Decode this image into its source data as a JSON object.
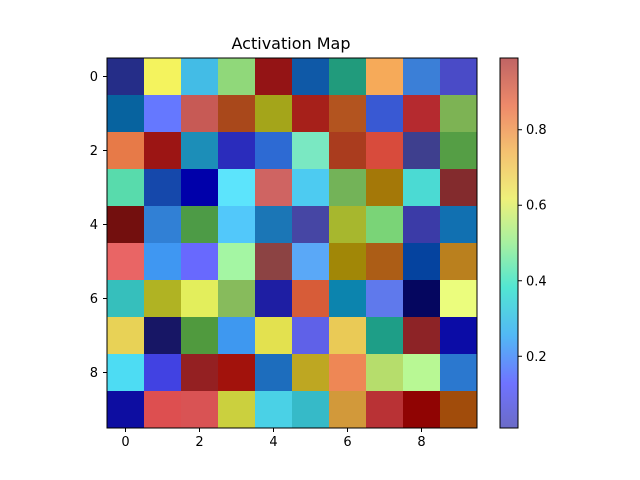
{
  "chart_data": {
    "type": "heatmap",
    "title": "Activation Map",
    "xlabel": "",
    "ylabel": "",
    "xticks": [
      "0",
      "2",
      "4",
      "6",
      "8"
    ],
    "yticks": [
      "0",
      "2",
      "4",
      "6",
      "8"
    ],
    "colorbar": {
      "ticks": [
        "0.2",
        "0.4",
        "0.6",
        "0.8"
      ],
      "tick_values": [
        0.2,
        0.4,
        0.6,
        0.8
      ],
      "range": [
        0.01,
        0.99
      ]
    },
    "grid_colors": [
      [
        "#252d88",
        "#f4f35e",
        "#43bce6",
        "#90d87a",
        "#941415",
        "#0f59a7",
        "#219b7c",
        "#f6aa59",
        "#3b7fd7",
        "#4a4bc7"
      ],
      [
        "#07639f",
        "#6578ff",
        "#c75a55",
        "#a9481b",
        "#a4a51a",
        "#a6201a",
        "#b3541f",
        "#3959d3",
        "#b52a2f",
        "#7db354"
      ],
      [
        "#e77a48",
        "#9c1514",
        "#1c8eb8",
        "#2a2cbc",
        "#2d6ad3",
        "#7ae8c2",
        "#aa3c1e",
        "#d84b3c",
        "#3e3f8e",
        "#559e45"
      ],
      [
        "#58dbac",
        "#1548ab",
        "#0000aa",
        "#5ce4fc",
        "#cf6462",
        "#4dcbf1",
        "#73b358",
        "#a47808",
        "#4bdad3",
        "#832b2d"
      ],
      [
        "#730f0e",
        "#3180d5",
        "#4d9b46",
        "#52c8fa",
        "#1b76b6",
        "#4646a4",
        "#a7b72e",
        "#7ad477",
        "#3b3ba7",
        "#1170b1"
      ],
      [
        "#e96565",
        "#3f97f2",
        "#6869fe",
        "#a4f6a3",
        "#8c4343",
        "#5aa8f7",
        "#a18707",
        "#ac5d16",
        "#05439f",
        "#ba801e"
      ],
      [
        "#36bfbc",
        "#b0b323",
        "#e3ee5c",
        "#87bb5c",
        "#1e1ea3",
        "#d75c38",
        "#0c84ae",
        "#5f79ec",
        "#05065f",
        "#ebfd7d"
      ],
      [
        "#e8d256",
        "#171665",
        "#509a3e",
        "#3e98f0",
        "#e3e14f",
        "#5f61e8",
        "#eaca56",
        "#1e9e87",
        "#8d2326",
        "#0b0ca6"
      ],
      [
        "#4ddcf3",
        "#4142e2",
        "#942022",
        "#a2120c",
        "#1d6dbd",
        "#bea722",
        "#ee8755",
        "#b6dd6c",
        "#b8f894",
        "#2b78cf"
      ],
      [
        "#0d0da1",
        "#dd4f50",
        "#d95354",
        "#cbd03e",
        "#4ad1e6",
        "#36bac8",
        "#d2993a",
        "#b93235",
        "#900403",
        "#a14c0b"
      ]
    ]
  }
}
